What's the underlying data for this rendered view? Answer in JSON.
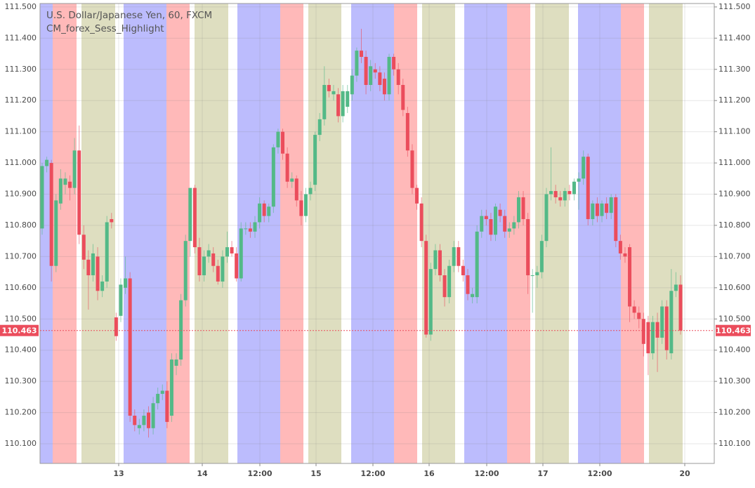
{
  "chart_data": {
    "type": "candlestick",
    "title": "U.S. Dollar/Japanese Yen, 60, FXCM",
    "subtitle": "CM_forex_Sess_Highlight",
    "up_color": "#53b987",
    "down_color": "#eb4d5c",
    "ylim": [
      110.037,
      111.511
    ],
    "yticks": [
      {
        "value": 110.1,
        "label": "110.100"
      },
      {
        "value": 110.2,
        "label": "110.200"
      },
      {
        "value": 110.3,
        "label": "110.300"
      },
      {
        "value": 110.4,
        "label": "110.400"
      },
      {
        "value": 110.5,
        "label": "110.500"
      },
      {
        "value": 110.6,
        "label": "110.600"
      },
      {
        "value": 110.7,
        "label": "110.700"
      },
      {
        "value": 110.8,
        "label": "110.800"
      },
      {
        "value": 110.9,
        "label": "110.900"
      },
      {
        "value": 111.0,
        "label": "111.000"
      },
      {
        "value": 111.1,
        "label": "111.100"
      },
      {
        "value": 111.2,
        "label": "111.200"
      },
      {
        "value": 111.3,
        "label": "111.300"
      },
      {
        "value": 111.4,
        "label": "111.400"
      },
      {
        "value": 111.5,
        "label": "111.500"
      }
    ],
    "x_labels": [
      "13",
      "14",
      "12:00",
      "15",
      "12:00",
      "16",
      "12:00",
      "17",
      "12:00",
      "20"
    ],
    "last_price": {
      "value": 110.463,
      "label": "110.463"
    },
    "candles": [
      [
        110.79,
        111.0,
        110.77,
        110.99
      ],
      [
        110.99,
        111.02,
        110.97,
        111.01
      ],
      [
        111.0,
        111.01,
        110.62,
        110.67
      ],
      [
        110.67,
        110.9,
        110.65,
        110.88
      ],
      [
        110.87,
        110.98,
        110.85,
        110.95
      ],
      [
        110.93,
        110.97,
        110.9,
        110.95
      ],
      [
        110.94,
        110.96,
        110.88,
        110.92
      ],
      [
        110.92,
        111.08,
        110.9,
        111.04
      ],
      [
        111.04,
        111.12,
        110.74,
        110.77
      ],
      [
        110.77,
        110.8,
        110.66,
        110.69
      ],
      [
        110.69,
        110.72,
        110.53,
        110.64
      ],
      [
        110.64,
        110.74,
        110.62,
        110.71
      ],
      [
        110.7,
        110.73,
        110.56,
        110.59
      ],
      [
        110.59,
        110.64,
        110.57,
        110.62
      ],
      [
        110.62,
        110.83,
        110.6,
        110.81
      ],
      [
        110.82,
        110.84,
        110.79,
        110.81
      ],
      [
        110.505,
        110.52,
        110.43,
        110.445
      ],
      [
        110.51,
        110.63,
        110.49,
        110.61
      ],
      [
        110.6,
        110.7,
        110.58,
        110.63
      ],
      [
        110.63,
        110.65,
        110.17,
        110.19
      ],
      [
        110.19,
        110.21,
        110.14,
        110.16
      ],
      [
        110.15,
        110.18,
        110.13,
        110.16
      ],
      [
        110.16,
        110.21,
        110.14,
        110.19
      ],
      [
        110.2,
        110.22,
        110.12,
        110.15
      ],
      [
        110.15,
        110.25,
        110.13,
        110.23
      ],
      [
        110.23,
        110.28,
        110.21,
        110.26
      ],
      [
        110.26,
        110.29,
        110.24,
        110.27
      ],
      [
        110.27,
        110.3,
        110.15,
        110.17
      ],
      [
        110.19,
        110.39,
        110.17,
        110.37
      ],
      [
        110.35,
        110.39,
        110.32,
        110.37
      ],
      [
        110.37,
        110.58,
        110.35,
        110.56
      ],
      [
        110.56,
        110.77,
        110.54,
        110.75
      ],
      [
        110.75,
        110.92,
        110.7,
        110.92
      ],
      [
        110.92,
        110.93,
        110.71,
        110.73
      ],
      [
        110.73,
        110.76,
        110.62,
        110.64
      ],
      [
        110.64,
        110.72,
        110.62,
        110.7
      ],
      [
        110.7,
        110.74,
        110.68,
        110.72
      ],
      [
        110.71,
        110.73,
        110.65,
        110.67
      ],
      [
        110.67,
        110.69,
        110.61,
        110.62
      ],
      [
        110.62,
        110.72,
        110.6,
        110.7
      ],
      [
        110.7,
        110.78,
        110.68,
        110.73
      ],
      [
        110.73,
        110.75,
        110.7,
        110.71
      ],
      [
        110.71,
        110.73,
        110.62,
        110.63
      ],
      [
        110.63,
        110.81,
        110.62,
        110.79
      ],
      [
        110.79,
        110.81,
        110.77,
        110.79
      ],
      [
        110.79,
        110.81,
        110.76,
        110.78
      ],
      [
        110.78,
        110.83,
        110.76,
        110.81
      ],
      [
        110.81,
        110.89,
        110.79,
        110.87
      ],
      [
        110.87,
        110.88,
        110.81,
        110.83
      ],
      [
        110.83,
        110.87,
        110.81,
        110.86
      ],
      [
        110.86,
        111.06,
        110.84,
        111.05
      ],
      [
        111.05,
        111.11,
        111.03,
        111.1
      ],
      [
        111.1,
        111.11,
        111.01,
        111.03
      ],
      [
        111.03,
        111.05,
        110.92,
        110.94
      ],
      [
        110.94,
        110.97,
        110.92,
        110.95
      ],
      [
        110.95,
        110.96,
        110.86,
        110.88
      ],
      [
        110.88,
        110.91,
        110.8,
        110.83
      ],
      [
        110.83,
        110.92,
        110.81,
        110.9
      ],
      [
        110.9,
        110.94,
        110.88,
        110.92
      ],
      [
        110.93,
        111.1,
        110.91,
        111.09
      ],
      [
        111.09,
        111.16,
        111.07,
        111.14
      ],
      [
        111.14,
        111.31,
        111.12,
        111.25
      ],
      [
        111.25,
        111.27,
        111.21,
        111.23
      ],
      [
        111.22,
        111.25,
        111.2,
        111.23
      ],
      [
        111.22,
        111.24,
        111.13,
        111.15
      ],
      [
        111.15,
        111.25,
        111.13,
        111.23
      ],
      [
        111.18,
        111.25,
        111.16,
        111.23
      ],
      [
        111.22,
        111.3,
        111.2,
        111.28
      ],
      [
        111.28,
        111.37,
        111.26,
        111.36
      ],
      [
        111.36,
        111.43,
        111.32,
        111.34
      ],
      [
        111.34,
        111.36,
        111.22,
        111.25
      ],
      [
        111.25,
        111.33,
        111.23,
        111.31
      ],
      [
        111.3,
        111.32,
        111.27,
        111.29
      ],
      [
        111.29,
        111.31,
        111.23,
        111.25
      ],
      [
        111.27,
        111.29,
        111.2,
        111.22
      ],
      [
        111.22,
        111.35,
        111.2,
        111.34
      ],
      [
        111.34,
        111.35,
        111.28,
        111.3
      ],
      [
        111.3,
        111.32,
        111.22,
        111.25
      ],
      [
        111.25,
        111.27,
        111.15,
        111.17
      ],
      [
        111.16,
        111.18,
        111.02,
        111.04
      ],
      [
        111.04,
        111.06,
        110.9,
        110.92
      ],
      [
        110.92,
        110.93,
        110.85,
        110.87
      ],
      [
        110.87,
        110.89,
        110.73,
        110.75
      ],
      [
        110.75,
        110.77,
        110.44,
        110.45
      ],
      [
        110.45,
        110.68,
        110.43,
        110.66
      ],
      [
        110.66,
        110.74,
        110.64,
        110.72
      ],
      [
        110.72,
        110.74,
        110.62,
        110.64
      ],
      [
        110.64,
        110.66,
        110.54,
        110.57
      ],
      [
        110.57,
        110.69,
        110.55,
        110.67
      ],
      [
        110.67,
        110.75,
        110.65,
        110.73
      ],
      [
        110.73,
        110.75,
        110.65,
        110.67
      ],
      [
        110.67,
        110.69,
        110.62,
        110.64
      ],
      [
        110.64,
        110.66,
        110.56,
        110.58
      ],
      [
        110.57,
        110.6,
        110.55,
        110.58
      ],
      [
        110.57,
        110.8,
        110.55,
        110.78
      ],
      [
        110.78,
        110.85,
        110.76,
        110.83
      ],
      [
        110.83,
        110.85,
        110.8,
        110.82
      ],
      [
        110.82,
        110.84,
        110.75,
        110.77
      ],
      [
        110.77,
        110.87,
        110.75,
        110.86
      ],
      [
        110.85,
        110.87,
        110.81,
        110.83
      ],
      [
        110.83,
        110.85,
        110.76,
        110.78
      ],
      [
        110.78,
        110.81,
        110.76,
        110.79
      ],
      [
        110.79,
        110.83,
        110.77,
        110.81
      ],
      [
        110.81,
        110.91,
        110.79,
        110.89
      ],
      [
        110.89,
        110.91,
        110.8,
        110.82
      ],
      [
        110.82,
        110.84,
        110.58,
        110.64
      ],
      [
        110.64,
        110.66,
        110.52,
        110.64
      ],
      [
        110.64,
        110.67,
        110.6,
        110.65
      ],
      [
        110.65,
        110.77,
        110.63,
        110.75
      ],
      [
        110.75,
        110.92,
        110.73,
        110.9
      ],
      [
        110.9,
        111.05,
        110.88,
        110.91
      ],
      [
        110.91,
        110.93,
        110.87,
        110.89
      ],
      [
        110.89,
        110.91,
        110.86,
        110.88
      ],
      [
        110.88,
        110.92,
        110.86,
        110.91
      ],
      [
        110.91,
        110.93,
        110.88,
        110.9
      ],
      [
        110.9,
        110.95,
        110.88,
        110.94
      ],
      [
        110.94,
        110.97,
        110.85,
        110.95
      ],
      [
        110.95,
        111.04,
        110.93,
        111.02
      ],
      [
        111.02,
        111.03,
        110.8,
        110.82
      ],
      [
        110.82,
        110.88,
        110.8,
        110.87
      ],
      [
        110.87,
        110.89,
        110.81,
        110.83
      ],
      [
        110.83,
        110.88,
        110.81,
        110.87
      ],
      [
        110.87,
        110.89,
        110.82,
        110.84
      ],
      [
        110.84,
        110.9,
        110.82,
        110.89
      ],
      [
        110.89,
        110.9,
        110.73,
        110.75
      ],
      [
        110.75,
        110.77,
        110.69,
        110.71
      ],
      [
        110.71,
        110.73,
        110.68,
        110.7
      ],
      [
        110.73,
        110.74,
        110.49,
        110.54
      ],
      [
        110.54,
        110.56,
        110.5,
        110.52
      ],
      [
        110.52,
        110.54,
        110.47,
        110.5
      ],
      [
        110.5,
        110.52,
        110.38,
        110.42
      ],
      [
        110.49,
        110.51,
        110.32,
        110.39
      ],
      [
        110.39,
        110.51,
        110.37,
        110.49
      ],
      [
        110.49,
        110.52,
        110.33,
        110.44
      ],
      [
        110.44,
        110.56,
        110.42,
        110.54
      ],
      [
        110.54,
        110.56,
        110.37,
        110.4
      ],
      [
        110.39,
        110.66,
        110.37,
        110.59
      ],
      [
        110.59,
        110.65,
        110.57,
        110.61
      ],
      [
        110.61,
        110.64,
        110.45,
        110.463
      ]
    ]
  }
}
